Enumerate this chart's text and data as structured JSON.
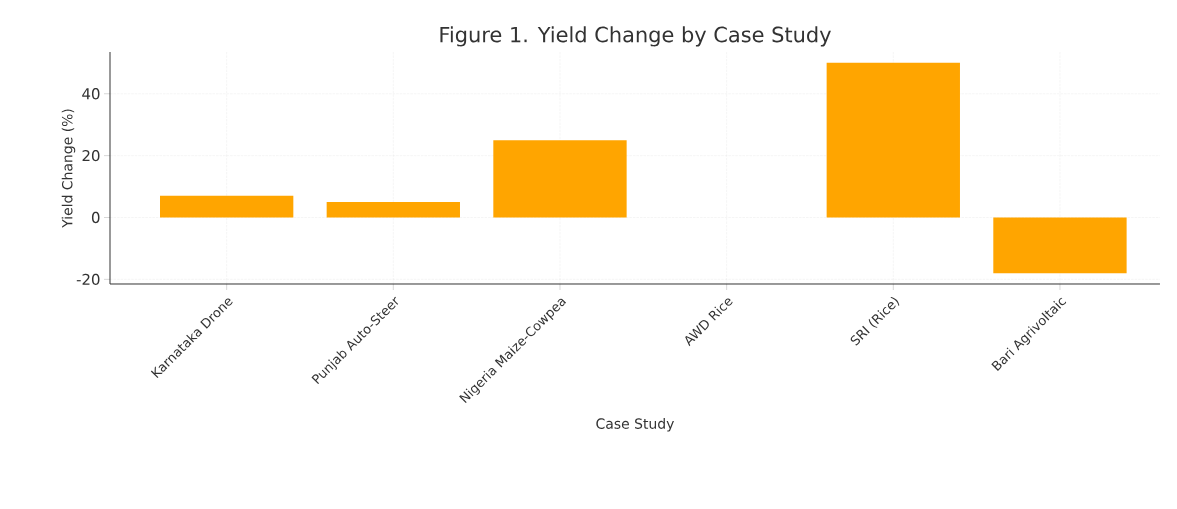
{
  "chart_data": {
    "type": "bar",
    "title": "Figure 1. Yield Change by Case Study",
    "xlabel": "Case Study",
    "ylabel": "Yield Change (%)",
    "categories": [
      "Karnataka Drone",
      "Punjab Auto-Steer",
      "Nigeria Maize-Cowpea",
      "AWD Rice",
      "SRI (Rice)",
      "Bari Agrivoltaic"
    ],
    "values": [
      7,
      5,
      25,
      0,
      50,
      -18
    ],
    "color": "#ffa500",
    "ylim": [
      -21.5,
      53.5
    ],
    "yticks": [
      -20,
      0,
      20,
      40
    ],
    "grid": true
  }
}
